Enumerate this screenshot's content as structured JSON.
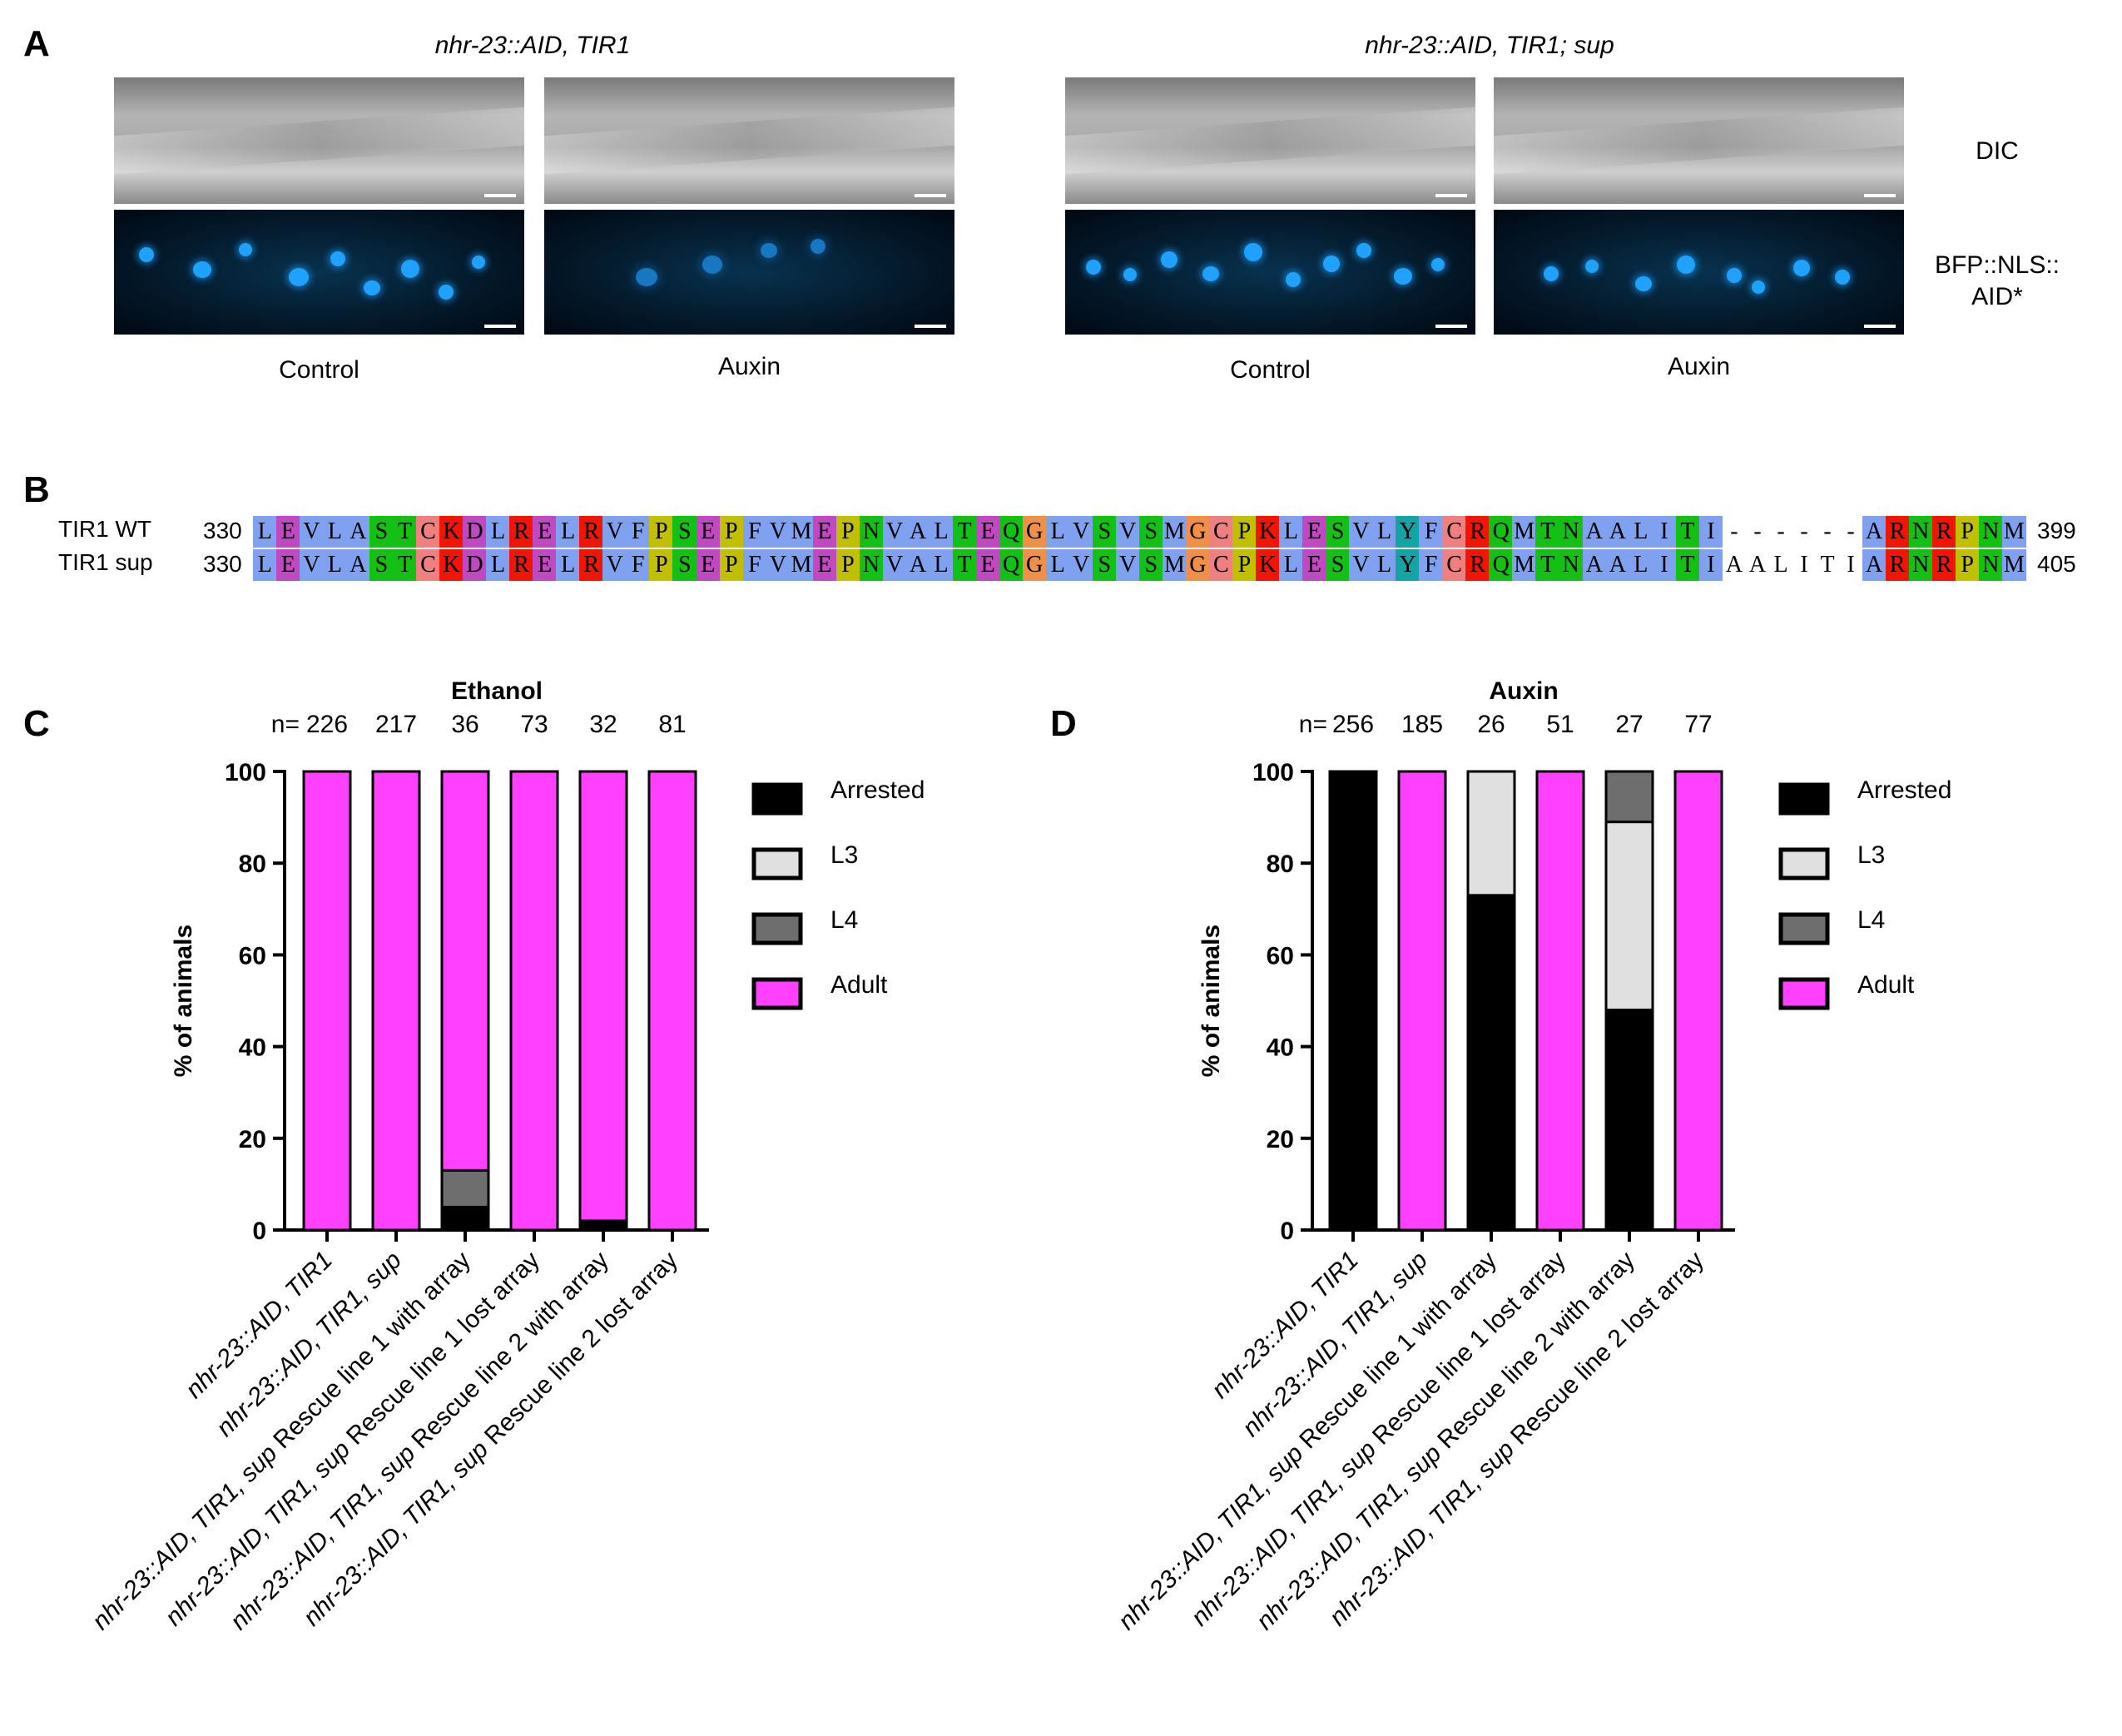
{
  "panels": {
    "A": {
      "letter": "A",
      "groups": [
        {
          "title": "nhr-23::AID, TIR1",
          "conditions": [
            "Control",
            "Auxin"
          ]
        },
        {
          "title": "nhr-23::AID, TIR1; sup",
          "conditions": [
            "Control",
            "Auxin"
          ]
        }
      ],
      "row_labels": {
        "dic": "DIC",
        "bfp_line1": "BFP::NLS::",
        "bfp_line2": "AID*"
      }
    },
    "B": {
      "letter": "B",
      "rows": [
        {
          "name": "TIR1 WT",
          "start": "330",
          "end": "399",
          "seq": "LEVLASTCKDLRELRVFPSEPFVMEPNVALTEQGLVSVSMGCPKLESVLYFCRQMTNAALITI------ARNRPNM"
        },
        {
          "name": "TIR1 sup",
          "start": "330",
          "end": "405",
          "seq": "LEVLASTCKDLRELRVFPSEPFVMEPNVALTEQGLVSVSMGCPKLESVLYFCRQMTNAALITIAALITIARNRPNM"
        }
      ],
      "color_scheme": {
        "hydrophobic": "#80a0f0",
        "polar": "#15c015",
        "positive": "#f01505",
        "negative": "#c048c0",
        "cysteine": "#f08080",
        "glycine": "#f09048",
        "proline": "#c0c000",
        "aromatic": "#15a4a4"
      }
    }
  },
  "legend": {
    "items": [
      {
        "label": "Arrested",
        "color": "#000000"
      },
      {
        "label": "L3",
        "color": "#e0e0e0"
      },
      {
        "label": "L4",
        "color": "#6e6e6e"
      },
      {
        "label": "Adult",
        "color": "#ff40ff"
      }
    ]
  },
  "chart_data": [
    {
      "panel": "C",
      "type": "bar",
      "stacked": true,
      "title": "Ethanol",
      "ylabel": "% of animals",
      "xlabel": "",
      "ylim": [
        0,
        100
      ],
      "yticks": [
        0,
        20,
        40,
        60,
        80,
        100
      ],
      "n_prefix": "n=",
      "n": [
        "226",
        "217",
        "36",
        "73",
        "32",
        "81"
      ],
      "categories": [
        [
          {
            "t": "nhr-23::AID, TIR1",
            "i": true
          }
        ],
        [
          {
            "t": "nhr-23::AID, TIR1, sup",
            "i": true
          }
        ],
        [
          {
            "t": "nhr-23::AID, TIR1, sup",
            "i": true
          },
          {
            "t": " Rescue line 1 with array",
            "i": false
          }
        ],
        [
          {
            "t": "nhr-23::AID, TIR1, sup",
            "i": true
          },
          {
            "t": " Rescue line 1 lost array",
            "i": false
          }
        ],
        [
          {
            "t": "nhr-23::AID, TIR1, sup",
            "i": true
          },
          {
            "t": " Rescue line 2 with array",
            "i": false
          }
        ],
        [
          {
            "t": "nhr-23::AID, TIR1, sup",
            "i": true
          },
          {
            "t": " Rescue line 2 lost array",
            "i": false
          }
        ]
      ],
      "series": [
        {
          "name": "Arrested",
          "values": [
            0,
            0,
            5,
            0,
            2,
            0
          ]
        },
        {
          "name": "L3",
          "values": [
            0,
            0,
            0,
            0,
            0,
            0
          ]
        },
        {
          "name": "L4",
          "values": [
            0,
            0,
            8,
            0,
            0,
            0
          ]
        },
        {
          "name": "Adult",
          "values": [
            100,
            100,
            87,
            100,
            98,
            100
          ]
        }
      ],
      "legend": "right",
      "grid": false
    },
    {
      "panel": "D",
      "type": "bar",
      "stacked": true,
      "title": "Auxin",
      "ylabel": "% of animals",
      "xlabel": "",
      "ylim": [
        0,
        100
      ],
      "yticks": [
        0,
        20,
        40,
        60,
        80,
        100
      ],
      "n_prefix": "n=",
      "n": [
        "256",
        "185",
        "26",
        "51",
        "27",
        "77"
      ],
      "categories": [
        [
          {
            "t": "nhr-23::AID, TIR1",
            "i": true
          }
        ],
        [
          {
            "t": "nhr-23::AID, TIR1, sup",
            "i": true
          }
        ],
        [
          {
            "t": "nhr-23::AID, TIR1, sup",
            "i": true
          },
          {
            "t": " Rescue line 1 with array",
            "i": false
          }
        ],
        [
          {
            "t": "nhr-23::AID, TIR1, sup",
            "i": true
          },
          {
            "t": " Rescue line 1 lost array",
            "i": false
          }
        ],
        [
          {
            "t": "nhr-23::AID, TIR1, sup",
            "i": true
          },
          {
            "t": " Rescue line 2 with array",
            "i": false
          }
        ],
        [
          {
            "t": "nhr-23::AID, TIR1, sup",
            "i": true
          },
          {
            "t": " Rescue line 2 lost array",
            "i": false
          }
        ]
      ],
      "series": [
        {
          "name": "Arrested",
          "values": [
            100,
            0,
            73,
            0,
            48,
            0
          ]
        },
        {
          "name": "L3",
          "values": [
            0,
            0,
            27,
            0,
            41,
            0
          ]
        },
        {
          "name": "L4",
          "values": [
            0,
            0,
            0,
            0,
            11,
            0
          ]
        },
        {
          "name": "Adult",
          "values": [
            0,
            100,
            0,
            100,
            0,
            100
          ]
        }
      ],
      "legend": "right",
      "grid": false
    }
  ]
}
